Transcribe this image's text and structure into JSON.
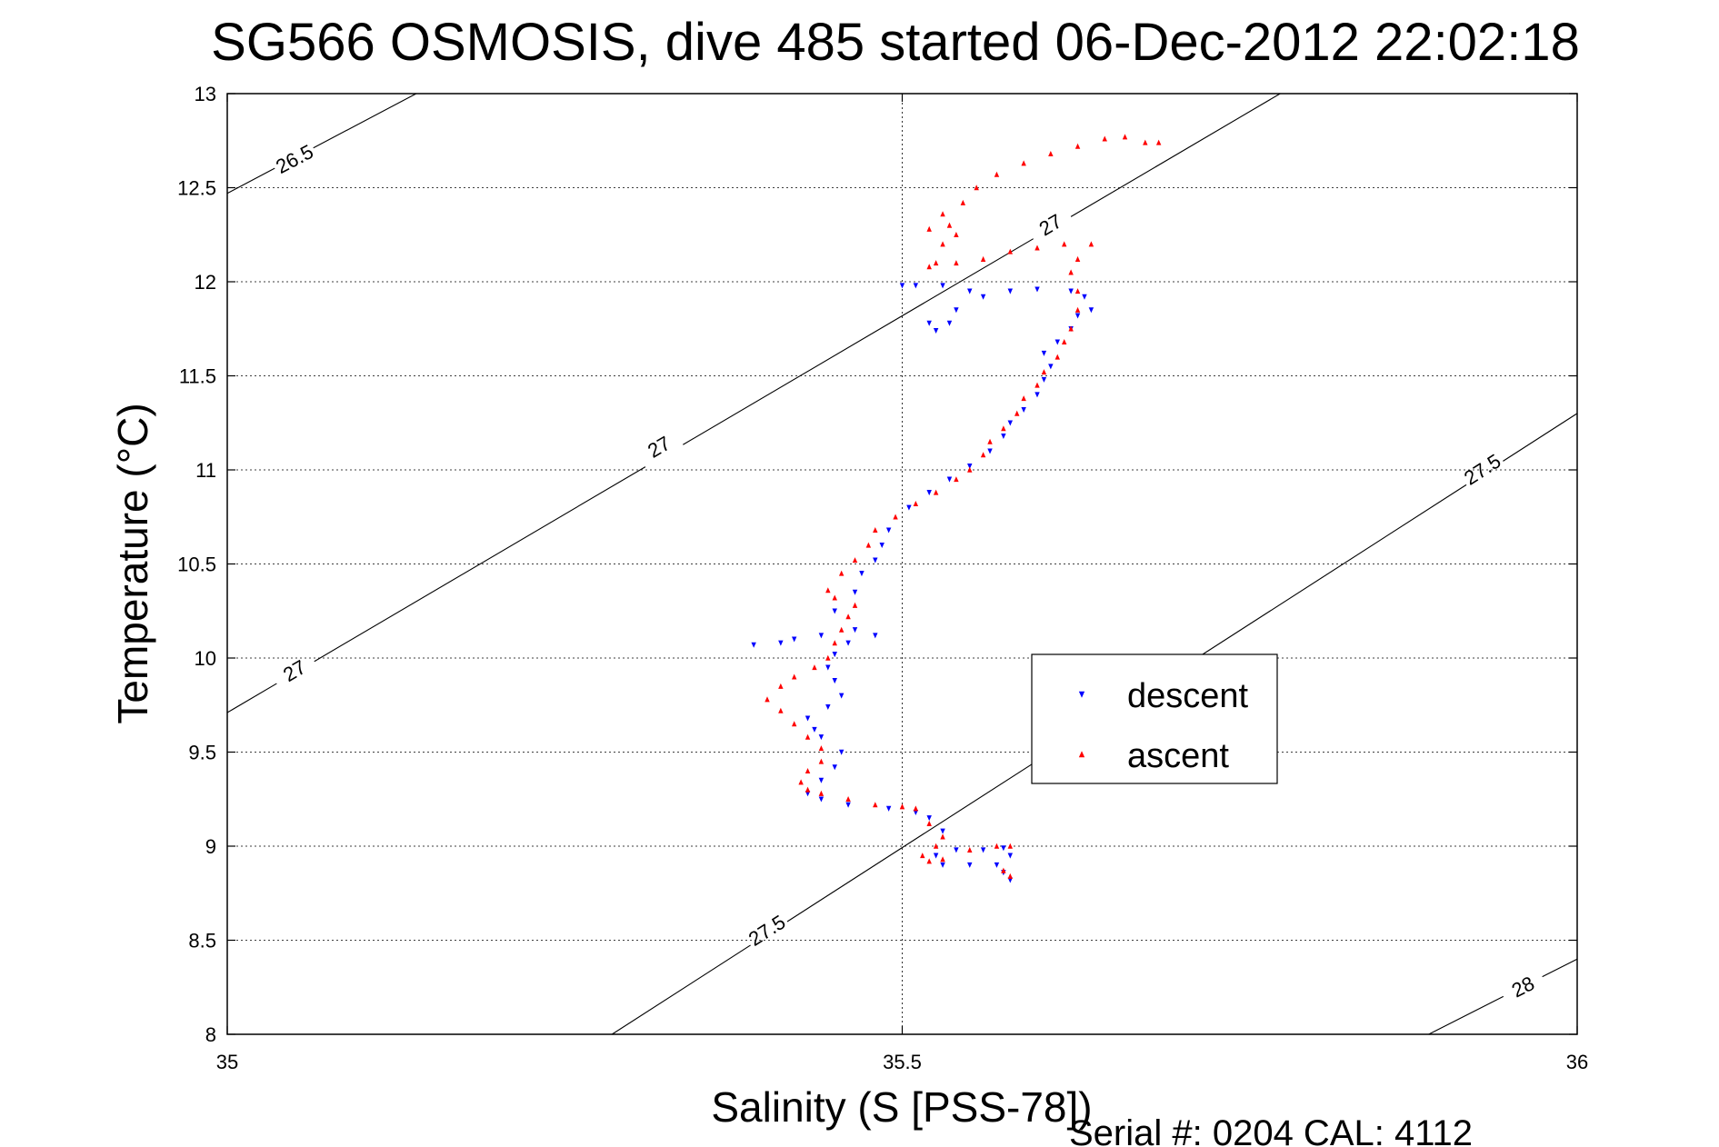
{
  "chart_data": {
    "type": "scatter",
    "title": "SG566 OSMOSIS, dive 485 started 06-Dec-2012 22:02:18",
    "xlabel": "Salinity (S [PSS-78])",
    "ylabel": "Temperature (°C)",
    "footer": "Serial #: 0204  CAL: 4112",
    "xlim": [
      35,
      36
    ],
    "ylim": [
      8,
      13
    ],
    "x_ticks": [
      35,
      35.5,
      36
    ],
    "x_tick_labels": [
      "35",
      "35.5",
      "36"
    ],
    "y_ticks": [
      8,
      8.5,
      9,
      9.5,
      10,
      10.5,
      11,
      11.5,
      12,
      12.5,
      13
    ],
    "y_tick_labels": [
      "8",
      "8.5",
      "9",
      "9.5",
      "10",
      "10.5",
      "11",
      "11.5",
      "12",
      "12.5",
      "13"
    ],
    "grid": true,
    "legend_position": "center-right",
    "colors": {
      "descent": "#0000ff",
      "ascent": "#ff0000"
    },
    "density_contours": [
      {
        "label": "26.5",
        "points": [
          [
            35,
            12.47
          ],
          [
            35.14,
            13
          ]
        ],
        "label_positions": [
          [
            35.05,
            12.65
          ]
        ]
      },
      {
        "label": "27",
        "points": [
          [
            35,
            9.71
          ],
          [
            35.78,
            13
          ]
        ],
        "label_positions": [
          [
            35.05,
            9.93
          ],
          [
            35.32,
            11.12
          ],
          [
            35.61,
            12.3
          ]
        ]
      },
      {
        "label": "27.5",
        "points": [
          [
            35.285,
            8
          ],
          [
            36,
            11.3
          ]
        ],
        "label_positions": [
          [
            35.4,
            8.55
          ],
          [
            35.93,
            11.0
          ]
        ]
      },
      {
        "label": "28",
        "points": [
          [
            35.89,
            8
          ],
          [
            36,
            8.4
          ]
        ],
        "label_positions": [
          [
            35.96,
            8.25
          ]
        ]
      }
    ],
    "series": [
      {
        "name": "descent",
        "marker": "down-triangle",
        "points": [
          [
            35.58,
            8.82
          ],
          [
            35.575,
            8.86
          ],
          [
            35.57,
            8.9
          ],
          [
            35.55,
            8.9
          ],
          [
            35.53,
            8.9
          ],
          [
            35.525,
            8.95
          ],
          [
            35.54,
            8.98
          ],
          [
            35.56,
            8.98
          ],
          [
            35.575,
            8.99
          ],
          [
            35.58,
            8.95
          ],
          [
            35.53,
            9.08
          ],
          [
            35.52,
            9.15
          ],
          [
            35.51,
            9.18
          ],
          [
            35.49,
            9.2
          ],
          [
            35.46,
            9.22
          ],
          [
            35.44,
            9.25
          ],
          [
            35.43,
            9.28
          ],
          [
            35.44,
            9.35
          ],
          [
            35.45,
            9.42
          ],
          [
            35.455,
            9.5
          ],
          [
            35.44,
            9.58
          ],
          [
            35.435,
            9.62
          ],
          [
            35.43,
            9.68
          ],
          [
            35.445,
            9.74
          ],
          [
            35.455,
            9.8
          ],
          [
            35.45,
            9.88
          ],
          [
            35.445,
            9.95
          ],
          [
            35.45,
            10.02
          ],
          [
            35.46,
            10.08
          ],
          [
            35.465,
            10.15
          ],
          [
            35.48,
            10.12
          ],
          [
            35.44,
            10.12
          ],
          [
            35.42,
            10.1
          ],
          [
            35.41,
            10.08
          ],
          [
            35.39,
            10.07
          ],
          [
            35.45,
            10.25
          ],
          [
            35.465,
            10.35
          ],
          [
            35.47,
            10.45
          ],
          [
            35.48,
            10.52
          ],
          [
            35.485,
            10.6
          ],
          [
            35.49,
            10.68
          ],
          [
            35.505,
            10.8
          ],
          [
            35.52,
            10.88
          ],
          [
            35.535,
            10.95
          ],
          [
            35.55,
            11.02
          ],
          [
            35.565,
            11.1
          ],
          [
            35.575,
            11.18
          ],
          [
            35.58,
            11.25
          ],
          [
            35.59,
            11.32
          ],
          [
            35.6,
            11.4
          ],
          [
            35.605,
            11.48
          ],
          [
            35.61,
            11.55
          ],
          [
            35.605,
            11.62
          ],
          [
            35.615,
            11.68
          ],
          [
            35.625,
            11.75
          ],
          [
            35.63,
            11.82
          ],
          [
            35.64,
            11.85
          ],
          [
            35.635,
            11.92
          ],
          [
            35.625,
            11.95
          ],
          [
            35.6,
            11.96
          ],
          [
            35.58,
            11.95
          ],
          [
            35.56,
            11.92
          ],
          [
            35.55,
            11.95
          ],
          [
            35.54,
            11.85
          ],
          [
            35.535,
            11.78
          ],
          [
            35.525,
            11.74
          ],
          [
            35.52,
            11.78
          ],
          [
            35.51,
            11.98
          ],
          [
            35.5,
            11.98
          ],
          [
            35.53,
            11.98
          ]
        ]
      },
      {
        "name": "ascent",
        "marker": "up-triangle",
        "points": [
          [
            35.58,
            8.84
          ],
          [
            35.575,
            8.87
          ],
          [
            35.58,
            9.0
          ],
          [
            35.57,
            9.0
          ],
          [
            35.55,
            8.98
          ],
          [
            35.53,
            8.93
          ],
          [
            35.52,
            8.92
          ],
          [
            35.515,
            8.95
          ],
          [
            35.525,
            9.0
          ],
          [
            35.53,
            9.05
          ],
          [
            35.52,
            9.12
          ],
          [
            35.51,
            9.2
          ],
          [
            35.5,
            9.21
          ],
          [
            35.48,
            9.22
          ],
          [
            35.46,
            9.25
          ],
          [
            35.44,
            9.28
          ],
          [
            35.43,
            9.3
          ],
          [
            35.425,
            9.34
          ],
          [
            35.43,
            9.4
          ],
          [
            35.44,
            9.45
          ],
          [
            35.44,
            9.52
          ],
          [
            35.43,
            9.58
          ],
          [
            35.42,
            9.65
          ],
          [
            35.41,
            9.72
          ],
          [
            35.4,
            9.78
          ],
          [
            35.41,
            9.85
          ],
          [
            35.42,
            9.9
          ],
          [
            35.435,
            9.95
          ],
          [
            35.445,
            10.0
          ],
          [
            35.45,
            10.08
          ],
          [
            35.455,
            10.15
          ],
          [
            35.46,
            10.22
          ],
          [
            35.465,
            10.28
          ],
          [
            35.45,
            10.32
          ],
          [
            35.445,
            10.36
          ],
          [
            35.455,
            10.45
          ],
          [
            35.465,
            10.52
          ],
          [
            35.475,
            10.6
          ],
          [
            35.48,
            10.68
          ],
          [
            35.495,
            10.75
          ],
          [
            35.51,
            10.82
          ],
          [
            35.525,
            10.88
          ],
          [
            35.54,
            10.95
          ],
          [
            35.55,
            11.0
          ],
          [
            35.56,
            11.08
          ],
          [
            35.565,
            11.15
          ],
          [
            35.575,
            11.22
          ],
          [
            35.585,
            11.3
          ],
          [
            35.59,
            11.38
          ],
          [
            35.6,
            11.45
          ],
          [
            35.605,
            11.52
          ],
          [
            35.615,
            11.6
          ],
          [
            35.62,
            11.68
          ],
          [
            35.625,
            11.75
          ],
          [
            35.63,
            11.85
          ],
          [
            35.63,
            11.95
          ],
          [
            35.625,
            12.05
          ],
          [
            35.63,
            12.12
          ],
          [
            35.64,
            12.2
          ],
          [
            35.62,
            12.2
          ],
          [
            35.6,
            12.18
          ],
          [
            35.58,
            12.16
          ],
          [
            35.56,
            12.12
          ],
          [
            35.54,
            12.1
          ],
          [
            35.525,
            12.1
          ],
          [
            35.52,
            12.08
          ],
          [
            35.53,
            12.2
          ],
          [
            35.54,
            12.25
          ],
          [
            35.535,
            12.3
          ],
          [
            35.52,
            12.28
          ],
          [
            35.53,
            12.36
          ],
          [
            35.545,
            12.42
          ],
          [
            35.555,
            12.5
          ],
          [
            35.57,
            12.57
          ],
          [
            35.59,
            12.63
          ],
          [
            35.61,
            12.68
          ],
          [
            35.63,
            12.72
          ],
          [
            35.65,
            12.76
          ],
          [
            35.665,
            12.77
          ],
          [
            35.68,
            12.74
          ],
          [
            35.69,
            12.74
          ]
        ]
      }
    ]
  }
}
